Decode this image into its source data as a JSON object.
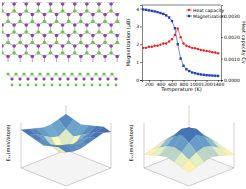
{
  "chart_data": [
    {
      "type": "line",
      "xlabel": "Temperature (K)",
      "ylabel": "Magnetization (μB)",
      "y2label": "Heat capacity Cv",
      "x": [
        100,
        150,
        200,
        250,
        300,
        350,
        400,
        450,
        500,
        550,
        600,
        650,
        700,
        750,
        800,
        850,
        900,
        950,
        1000,
        1050,
        1100,
        1150,
        1200,
        1250,
        1300,
        1350,
        1400
      ],
      "xlim": [
        80,
        1450
      ],
      "xticks": [
        200,
        400,
        600,
        800,
        1000,
        1200,
        1400
      ],
      "ylim": [
        0,
        4.2
      ],
      "yticks": [
        0,
        1,
        2,
        3,
        4
      ],
      "y2lim": [
        0,
        0.0035
      ],
      "y2ticks": [
        {
          "value": 0,
          "label": "0.0000"
        },
        {
          "value": 0.001,
          "label": "0.0010"
        },
        {
          "value": 0.002,
          "label": "0.0020"
        },
        {
          "value": 0.003,
          "label": "0.0030"
        }
      ],
      "grid": false,
      "legend": "upper right",
      "series": [
        {
          "name": "Heat capacity",
          "color": "#e8231f",
          "marker": "circle",
          "line_style": "solid",
          "axis": "y2",
          "values": [
            0.0015,
            0.0015,
            0.00155,
            0.00155,
            0.0016,
            0.0016,
            0.00165,
            0.0017,
            0.0017,
            0.0018,
            0.0019,
            0.0021,
            0.0024,
            0.002,
            0.0017,
            0.0016,
            0.00155,
            0.0015,
            0.00148,
            0.00145,
            0.0014,
            0.00138,
            0.00135,
            0.00133,
            0.0013,
            0.00128,
            0.00125
          ]
        },
        {
          "name": "Magnetization",
          "color": "#1f3fbf",
          "marker": "square",
          "line_style": "solid",
          "values": [
            3.95,
            3.93,
            3.9,
            3.87,
            3.84,
            3.8,
            3.75,
            3.7,
            3.62,
            3.5,
            3.3,
            2.9,
            2.0,
            1.2,
            0.8,
            0.6,
            0.5,
            0.42,
            0.38,
            0.34,
            0.31,
            0.29,
            0.27,
            0.26,
            0.25,
            0.24,
            0.23
          ]
        }
      ]
    },
    {
      "type": "surface",
      "zlabel": "Eₓᵧ(meV/atom)",
      "tick_labels": false,
      "x": [
        0,
        1,
        2,
        3,
        4,
        5,
        6
      ],
      "y": [
        0,
        1,
        2,
        3,
        4,
        5,
        6
      ],
      "xlim": [
        0,
        6
      ],
      "ylim": [
        0,
        6
      ],
      "zlim": [
        0,
        10
      ],
      "z": [
        [
          8,
          7.5,
          7,
          7.5,
          8,
          8.5,
          8
        ],
        [
          7.5,
          6,
          5,
          6,
          7,
          8,
          8.5
        ],
        [
          7,
          5,
          2,
          4,
          6.5,
          7.5,
          8
        ],
        [
          7,
          5.5,
          3,
          4.5,
          6,
          7,
          7.5
        ],
        [
          7.5,
          6.5,
          5,
          5.5,
          6.5,
          7,
          7
        ],
        [
          8,
          7.5,
          7,
          6.5,
          7,
          7.5,
          7
        ],
        [
          8.5,
          8,
          7.5,
          7,
          7.5,
          8,
          7.5
        ]
      ]
    },
    {
      "type": "surface",
      "zlabel": "Eₓᵧ(meV/atom)",
      "tick_labels": false,
      "x": [
        0,
        1,
        2,
        3,
        4,
        5,
        6
      ],
      "y": [
        0,
        1,
        2,
        3,
        4,
        5,
        6
      ],
      "xlim": [
        0,
        6
      ],
      "ylim": [
        0,
        6
      ],
      "zlim": [
        0,
        10
      ],
      "z": [
        [
          3,
          3.5,
          4,
          4.5,
          4,
          3.5,
          3
        ],
        [
          3.5,
          4.5,
          5.5,
          6,
          5.5,
          4.5,
          3.5
        ],
        [
          4,
          5.5,
          7,
          8,
          7,
          5.5,
          4
        ],
        [
          4.5,
          6,
          8,
          9,
          8,
          6,
          4.5
        ],
        [
          4,
          5.5,
          7,
          8,
          7,
          5.5,
          4
        ],
        [
          3.5,
          4.5,
          5.5,
          6,
          5.5,
          4.5,
          3.5
        ],
        [
          3,
          3.5,
          4,
          4.5,
          4,
          3.5,
          3
        ]
      ]
    }
  ]
}
